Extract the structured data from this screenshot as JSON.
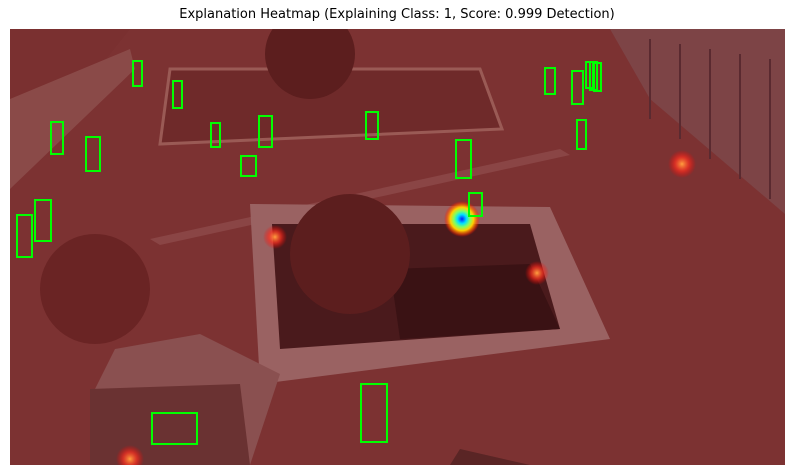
{
  "title": "Explanation Heatmap (Explaining Class: 1, Score: 0.999 Detection)",
  "figure": {
    "description_icon": "heatmap-overlay-image",
    "overlay_color": "#a01e1e",
    "box_color": "#00ff00",
    "detection_count": 22
  }
}
